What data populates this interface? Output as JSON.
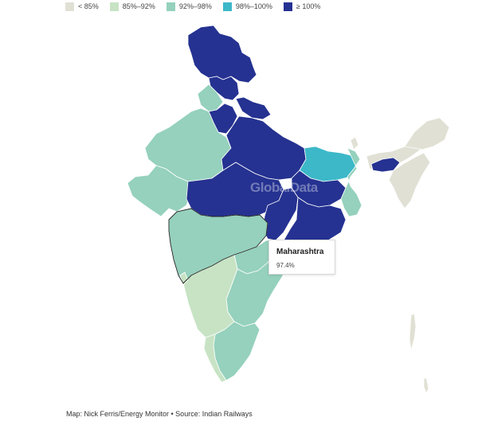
{
  "legend": {
    "items": [
      {
        "label": "< 85%",
        "color": "#e0e0d4"
      },
      {
        "label": "85%–92%",
        "color": "#c7e3c4"
      },
      {
        "label": "92%–98%",
        "color": "#95d1bd"
      },
      {
        "label": "98%–100%",
        "color": "#3cb8c8"
      },
      {
        "label": "≥ 100%",
        "color": "#253291"
      }
    ]
  },
  "tooltip": {
    "title": "Maharashtra",
    "value": "97.4%"
  },
  "watermark": "GlobalData",
  "caption": "Map: Nick Ferris/Energy Monitor • Source: Indian Railways",
  "colors": {
    "lt85": "#e0e0d4",
    "c85_92": "#c7e3c4",
    "c92_98": "#95d1bd",
    "c98_100": "#3cb8c8",
    "ge100": "#253291"
  }
}
